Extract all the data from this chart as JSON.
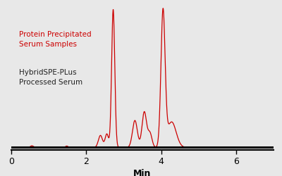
{
  "xlabel": "Min",
  "line_color": "#cc0000",
  "background_color": "#e8e8e8",
  "xlim": [
    0,
    7.0
  ],
  "ylim": [
    -0.015,
    1.0
  ],
  "xticks": [
    0,
    2,
    4,
    6
  ],
  "label_red": "Protein Precipitated\nSerum Samples",
  "label_black": "HybridSPE-PLus\nProcessed Serum",
  "label_red_color": "#cc0000",
  "label_black_color": "#222222",
  "peaks": [
    {
      "mu": 0.55,
      "sigma": 0.04,
      "amp": 0.012
    },
    {
      "mu": 1.48,
      "sigma": 0.035,
      "amp": 0.01
    },
    {
      "mu": 2.38,
      "sigma": 0.055,
      "amp": 0.085
    },
    {
      "mu": 2.55,
      "sigma": 0.045,
      "amp": 0.095
    },
    {
      "mu": 2.72,
      "sigma": 0.042,
      "amp": 0.97
    },
    {
      "mu": 3.3,
      "sigma": 0.065,
      "amp": 0.19
    },
    {
      "mu": 3.55,
      "sigma": 0.06,
      "amp": 0.25
    },
    {
      "mu": 3.7,
      "sigma": 0.055,
      "amp": 0.1
    },
    {
      "mu": 4.05,
      "sigma": 0.055,
      "amp": 0.95
    },
    {
      "mu": 4.28,
      "sigma": 0.12,
      "amp": 0.18
    }
  ]
}
